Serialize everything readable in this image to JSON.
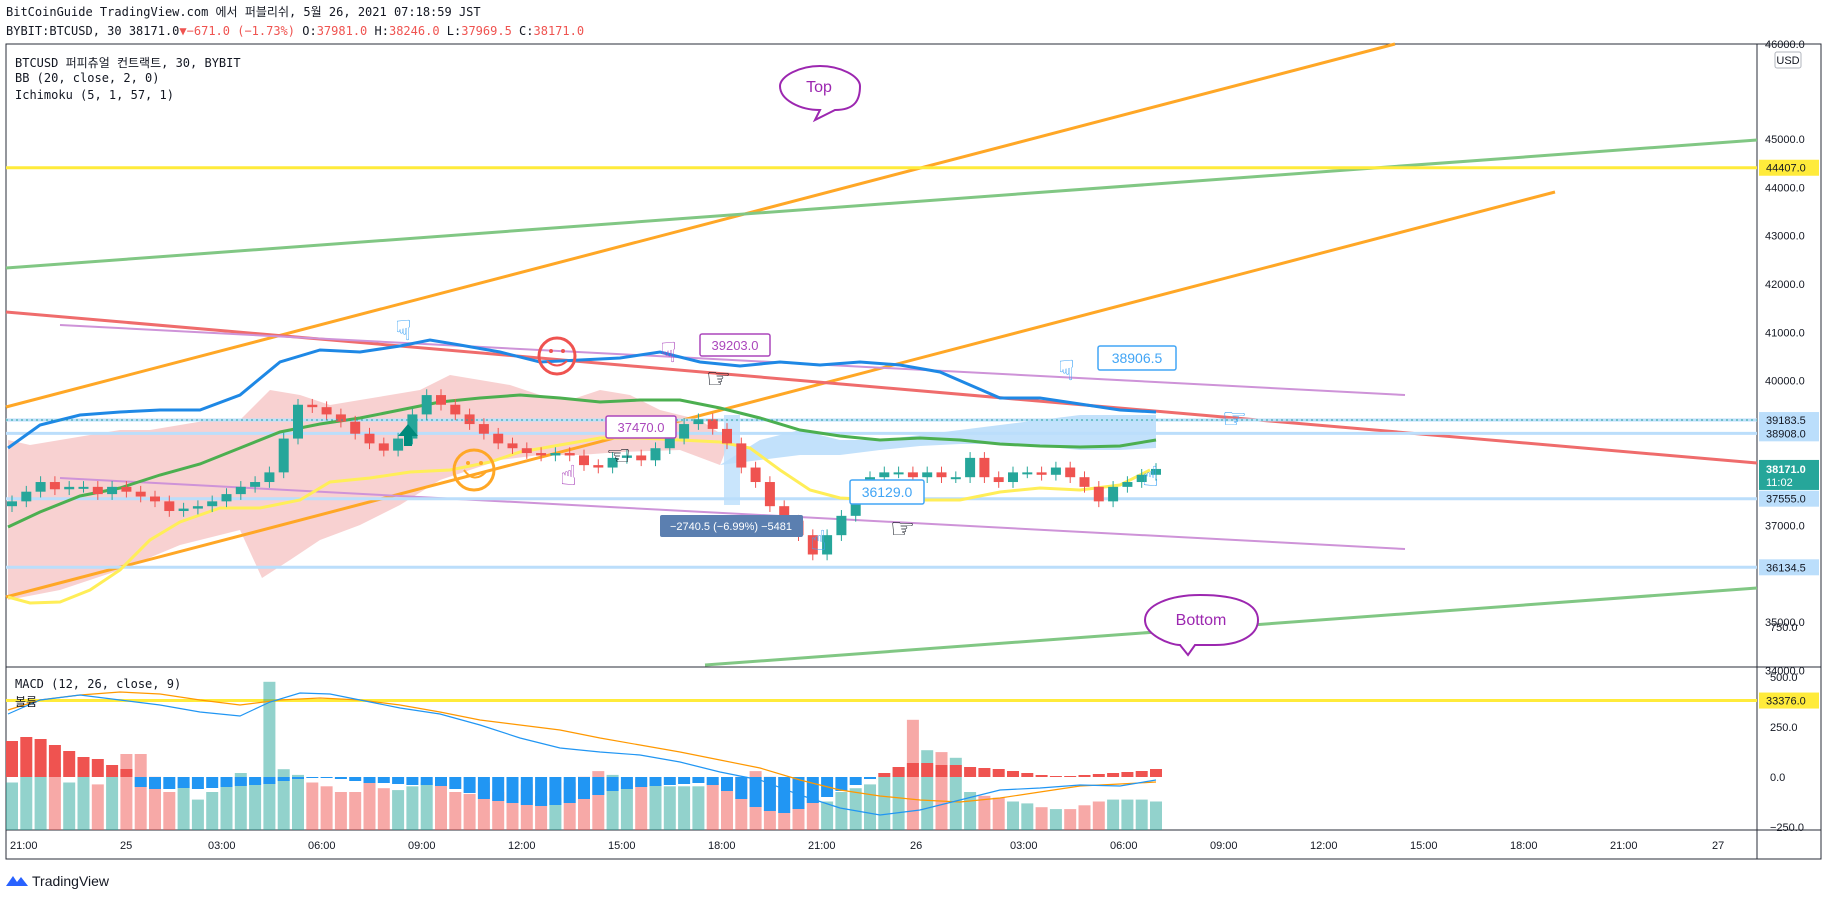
{
  "header": {
    "publish_line": "BitCoinGuide TradingView.com 에서 퍼블리쉬, 5월 26, 2021 07:18:59 JST",
    "symbol": "BYBIT:BTCUSD, 30",
    "last": "38171.0",
    "change": "−671.0 (−1.73%)",
    "o_label": "O:",
    "o_val": "37981.0",
    "h_label": "H:",
    "h_val": "38246.0",
    "l_label": "L:",
    "l_val": "37969.5",
    "c_label": "C:",
    "c_val": "38171.0"
  },
  "indicators": {
    "main_title": "BTCUSD 퍼피츄얼 컨트랙트, 30, BYBIT",
    "bb": "BB (20, close, 2, 0)",
    "ichimoku": "Ichimoku (5, 1, 57, 1)",
    "macd": "MACD (12, 26, close, 9)",
    "volume": "볼륨"
  },
  "callouts": {
    "top": "Top",
    "bottom": "Bottom"
  },
  "annotations": {
    "a1": "39203.0",
    "a2": "37470.0",
    "a3": "38906.5",
    "a4": "36129.0",
    "measure": "−2740.5 (−6.99%) −5481"
  },
  "price_axis": {
    "currency": "USD",
    "ticks": [
      45000,
      44000,
      43000,
      42000,
      41000,
      40000,
      37000,
      35000,
      34000
    ],
    "tick_labels": [
      "45000.0",
      "44000.0",
      "43000.0",
      "42000.0",
      "41000.0",
      "40000.0",
      "37000.0",
      "35000.0",
      "34000.0"
    ],
    "partial_top": "46000.0",
    "level_labels": [
      "44407.0",
      "39183.5",
      "38908.0",
      "37555.0",
      "36134.5",
      "33376.0"
    ],
    "last_price": "38171.0",
    "countdown": "11:02"
  },
  "macd_axis": {
    "ticks": [
      "750.0",
      "500.0",
      "250.0",
      "0.0",
      "−250.0"
    ]
  },
  "time_axis": [
    "21:00",
    "25",
    "03:00",
    "06:00",
    "09:00",
    "12:00",
    "15:00",
    "18:00",
    "21:00",
    "26",
    "03:00",
    "06:00",
    "09:00",
    "12:00",
    "15:00",
    "18:00",
    "21:00",
    "27"
  ],
  "footer": {
    "brand": "TradingView"
  },
  "colors": {
    "up": "#26a69a",
    "down": "#ef5350",
    "orange": "#ffa726",
    "green_trend": "#66bb6a",
    "yellow": "#ffeb3b",
    "lavender": "#ce93d8",
    "callout": "#9c27b0",
    "annot_blue": "#42a5f5"
  },
  "chart_data": {
    "type": "candlestick",
    "title": "BTCUSD 퍼피츄얼 컨트랙트, 30, BYBIT",
    "timeframe": "30",
    "x_ticks": [
      "21:00",
      "25",
      "03:00",
      "06:00",
      "09:00",
      "12:00",
      "15:00",
      "18:00",
      "21:00",
      "26",
      "03:00",
      "06:00",
      "09:00",
      "12:00",
      "15:00",
      "18:00",
      "21:00",
      "27"
    ],
    "ylim": [
      34000,
      46000
    ],
    "y_ticks": [
      34000,
      35000,
      37000,
      40000,
      41000,
      42000,
      43000,
      44000,
      45000,
      46000
    ],
    "closes": [
      37500,
      37700,
      37900,
      37750,
      37800,
      37800,
      37650,
      37800,
      37700,
      37600,
      37500,
      37300,
      37350,
      37400,
      37500,
      37650,
      37800,
      37900,
      38100,
      38800,
      39500,
      39450,
      39300,
      39150,
      38900,
      38700,
      38550,
      38800,
      39300,
      39700,
      39500,
      39300,
      39100,
      38900,
      38700,
      38600,
      38500,
      38450,
      38500,
      38450,
      38250,
      38200,
      38400,
      38450,
      38350,
      38600,
      38800,
      39100,
      39200,
      39000,
      38700,
      38200,
      37900,
      37400,
      37100,
      36800,
      36400,
      36800,
      37200,
      37700,
      38000,
      38100,
      38100,
      38000,
      38100,
      38000,
      38000,
      38400,
      38000,
      37900,
      38100,
      38100,
      38050,
      38200,
      38000,
      37800,
      37500,
      37800,
      37900,
      38050,
      38171
    ],
    "horizontal_levels": [
      44407.0,
      39183.5,
      38908.0,
      37555.0,
      36134.5,
      33376.0
    ],
    "last_price": 38171.0,
    "annotated_prices": [
      39203.0,
      37470.0,
      38906.5,
      36129.0
    ],
    "measurement": {
      "change": -2740.5,
      "percent": -6.99,
      "ticks": -5481
    },
    "macd": {
      "ylim": [
        -400,
        900
      ],
      "ticks": [
        750,
        500,
        250,
        0,
        -250
      ],
      "histogram": [
        180,
        200,
        190,
        160,
        130,
        100,
        90,
        60,
        40,
        -50,
        -60,
        -60,
        -55,
        -60,
        -55,
        -50,
        -45,
        -40,
        -35,
        -20,
        -10,
        -5,
        -5,
        -10,
        -20,
        -30,
        -30,
        -35,
        -40,
        -40,
        -45,
        -60,
        -80,
        -110,
        -120,
        -130,
        -140,
        -145,
        -140,
        -130,
        -110,
        -90,
        -70,
        -60,
        -50,
        -45,
        -40,
        -35,
        -30,
        -40,
        -70,
        -110,
        -150,
        -170,
        -180,
        -160,
        -130,
        -100,
        -70,
        -40,
        -10,
        20,
        50,
        70,
        70,
        60,
        60,
        50,
        45,
        40,
        30,
        20,
        10,
        5,
        5,
        10,
        15,
        20,
        25,
        30,
        40
      ],
      "volume": [
        250,
        280,
        280,
        330,
        250,
        300,
        240,
        280,
        400,
        400,
        280,
        200,
        250,
        160,
        200,
        250,
        300,
        270,
        780,
        320,
        290,
        250,
        230,
        200,
        200,
        270,
        220,
        210,
        230,
        250,
        270,
        200,
        190,
        250,
        200,
        230,
        240,
        180,
        170,
        250,
        280,
        310,
        290,
        260,
        270,
        240,
        230,
        230,
        230,
        250,
        230,
        280,
        310,
        280,
        200,
        170,
        160,
        150,
        200,
        220,
        240,
        280,
        330,
        580,
        420,
        410,
        380,
        200,
        180,
        170,
        150,
        140,
        120,
        110,
        110,
        130,
        150,
        160,
        160,
        160,
        150
      ]
    }
  }
}
